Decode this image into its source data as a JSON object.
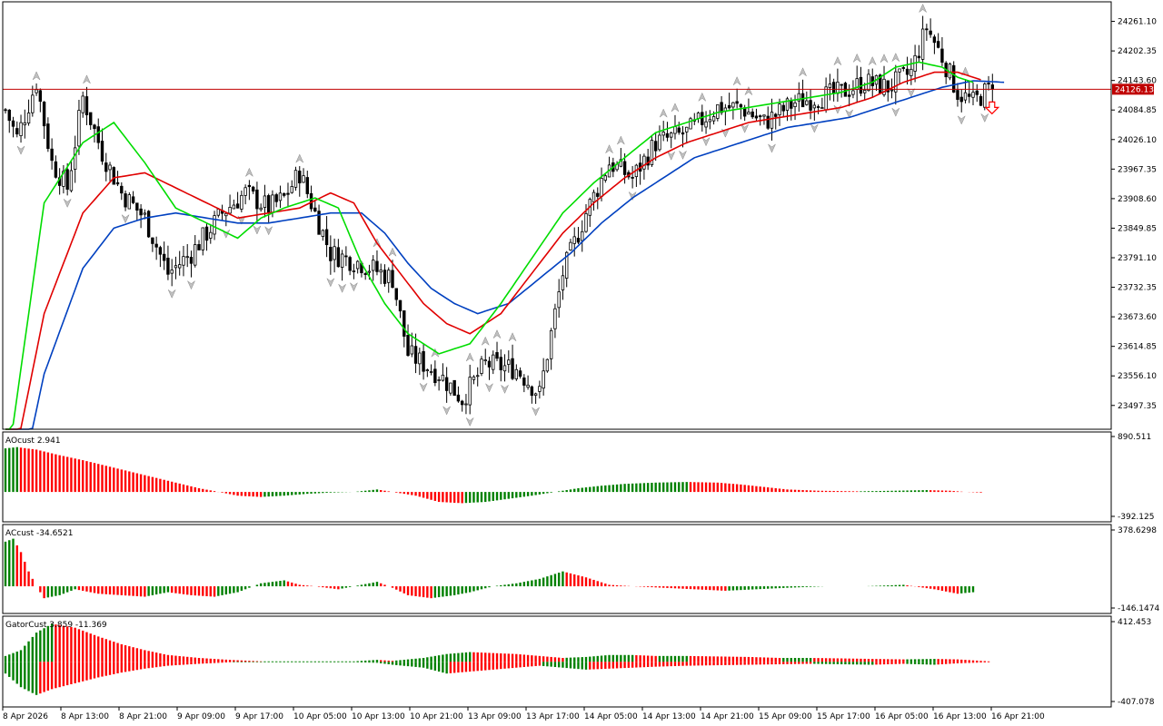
{
  "colors": {
    "background": "#ffffff",
    "frame": "#000000",
    "bull_body": "#ffffff",
    "bear_body": "#000000",
    "candle_wick": "#000000",
    "fractal_arrow": "#c0c0c0",
    "alligator_lips": "#00dd00",
    "alligator_teeth": "#e00000",
    "alligator_jaw": "#0040c0",
    "price_line": "#c00000",
    "price_tag_bg": "#c00000",
    "price_tag_text": "#ffffff",
    "hist_up": "#008000",
    "hist_down": "#ff0000",
    "sell_arrow": "#ff0000"
  },
  "chart_data": [
    {
      "type": "candlestick",
      "pane": "main",
      "price_axis": {
        "ticks": [
          "24261.10",
          "24202.35",
          "24143.60",
          "24084.85",
          "24026.10",
          "23967.35",
          "23908.60",
          "23849.85",
          "23791.10",
          "23732.35",
          "23673.60",
          "23614.85",
          "23556.10",
          "23497.35"
        ],
        "current_price": "24126.13",
        "ylim": [
          23450,
          24300
        ]
      },
      "time_axis": {
        "ticks": [
          "8 Apr 2026",
          "8 Apr 13:00",
          "8 Apr 21:00",
          "9 Apr 09:00",
          "9 Apr 17:00",
          "10 Apr 05:00",
          "10 Apr 13:00",
          "10 Apr 21:00",
          "13 Apr 09:00",
          "13 Apr 17:00",
          "14 Apr 05:00",
          "14 Apr 13:00",
          "14 Apr 21:00",
          "15 Apr 09:00",
          "15 Apr 17:00",
          "16 Apr 05:00",
          "16 Apr 13:00",
          "16 Apr 21:00"
        ]
      },
      "close_anchors": [
        [
          0,
          24085
        ],
        [
          3,
          24030
        ],
        [
          8,
          24140
        ],
        [
          12,
          23980
        ],
        [
          16,
          23930
        ],
        [
          20,
          24110
        ],
        [
          25,
          24000
        ],
        [
          30,
          23920
        ],
        [
          36,
          23870
        ],
        [
          42,
          23760
        ],
        [
          48,
          23800
        ],
        [
          56,
          23880
        ],
        [
          62,
          23920
        ],
        [
          68,
          23890
        ],
        [
          72,
          23910
        ],
        [
          76,
          23960
        ],
        [
          84,
          23800
        ],
        [
          92,
          23780
        ],
        [
          100,
          23750
        ],
        [
          104,
          23600
        ],
        [
          112,
          23560
        ],
        [
          118,
          23510
        ],
        [
          124,
          23580
        ],
        [
          132,
          23570
        ],
        [
          138,
          23520
        ],
        [
          144,
          23760
        ],
        [
          150,
          23880
        ],
        [
          156,
          23980
        ],
        [
          162,
          23950
        ],
        [
          168,
          24020
        ],
        [
          176,
          24040
        ],
        [
          184,
          24090
        ],
        [
          190,
          24090
        ],
        [
          196,
          24060
        ],
        [
          204,
          24100
        ],
        [
          210,
          24110
        ],
        [
          216,
          24120
        ],
        [
          222,
          24140
        ],
        [
          228,
          24130
        ],
        [
          234,
          24160
        ],
        [
          238,
          24250
        ],
        [
          242,
          24190
        ],
        [
          246,
          24120
        ],
        [
          250,
          24100
        ],
        [
          254,
          24126
        ]
      ],
      "lips_anchors": [
        [
          0,
          23350
        ],
        [
          10,
          23900
        ],
        [
          20,
          24020
        ],
        [
          28,
          24060
        ],
        [
          36,
          23980
        ],
        [
          44,
          23890
        ],
        [
          52,
          23860
        ],
        [
          60,
          23830
        ],
        [
          66,
          23870
        ],
        [
          72,
          23890
        ],
        [
          80,
          23910
        ],
        [
          86,
          23890
        ],
        [
          92,
          23780
        ],
        [
          98,
          23700
        ],
        [
          104,
          23640
        ],
        [
          112,
          23600
        ],
        [
          120,
          23620
        ],
        [
          128,
          23700
        ],
        [
          136,
          23790
        ],
        [
          144,
          23880
        ],
        [
          152,
          23940
        ],
        [
          160,
          23990
        ],
        [
          168,
          24040
        ],
        [
          176,
          24060
        ],
        [
          184,
          24080
        ],
        [
          192,
          24090
        ],
        [
          200,
          24100
        ],
        [
          208,
          24110
        ],
        [
          216,
          24120
        ],
        [
          224,
          24140
        ],
        [
          230,
          24170
        ],
        [
          236,
          24180
        ],
        [
          242,
          24170
        ],
        [
          246,
          24150
        ],
        [
          250,
          24140
        ]
      ],
      "teeth_anchors": [
        [
          0,
          23300
        ],
        [
          10,
          23680
        ],
        [
          20,
          23880
        ],
        [
          28,
          23950
        ],
        [
          36,
          23960
        ],
        [
          44,
          23930
        ],
        [
          52,
          23900
        ],
        [
          60,
          23870
        ],
        [
          68,
          23880
        ],
        [
          76,
          23890
        ],
        [
          84,
          23920
        ],
        [
          90,
          23900
        ],
        [
          96,
          23820
        ],
        [
          102,
          23760
        ],
        [
          108,
          23700
        ],
        [
          114,
          23660
        ],
        [
          120,
          23640
        ],
        [
          128,
          23680
        ],
        [
          136,
          23760
        ],
        [
          144,
          23840
        ],
        [
          152,
          23900
        ],
        [
          160,
          23950
        ],
        [
          168,
          23990
        ],
        [
          176,
          24020
        ],
        [
          184,
          24040
        ],
        [
          192,
          24060
        ],
        [
          200,
          24070
        ],
        [
          208,
          24080
        ],
        [
          216,
          24090
        ],
        [
          224,
          24110
        ],
        [
          232,
          24140
        ],
        [
          240,
          24160
        ],
        [
          246,
          24160
        ],
        [
          252,
          24145
        ]
      ],
      "jaw_anchors": [
        [
          0,
          23200
        ],
        [
          10,
          23560
        ],
        [
          20,
          23770
        ],
        [
          28,
          23850
        ],
        [
          36,
          23870
        ],
        [
          44,
          23880
        ],
        [
          52,
          23870
        ],
        [
          60,
          23860
        ],
        [
          68,
          23860
        ],
        [
          76,
          23870
        ],
        [
          84,
          23880
        ],
        [
          92,
          23880
        ],
        [
          98,
          23840
        ],
        [
          104,
          23780
        ],
        [
          110,
          23730
        ],
        [
          116,
          23700
        ],
        [
          122,
          23680
        ],
        [
          130,
          23700
        ],
        [
          138,
          23750
        ],
        [
          146,
          23800
        ],
        [
          154,
          23860
        ],
        [
          162,
          23910
        ],
        [
          170,
          23950
        ],
        [
          178,
          23990
        ],
        [
          186,
          24010
        ],
        [
          194,
          24030
        ],
        [
          202,
          24050
        ],
        [
          210,
          24060
        ],
        [
          218,
          24070
        ],
        [
          226,
          24090
        ],
        [
          234,
          24110
        ],
        [
          242,
          24130
        ],
        [
          250,
          24143
        ],
        [
          258,
          24140
        ]
      ]
    },
    {
      "type": "histogram",
      "pane": "indicator",
      "label": "AOcust 2.941",
      "axis_ticks": [
        "890.511",
        "-392.125"
      ],
      "ylim": [
        -392.125,
        890.511
      ],
      "anchors": [
        [
          0,
          700
        ],
        [
          3,
          720
        ],
        [
          8,
          680
        ],
        [
          14,
          590
        ],
        [
          20,
          510
        ],
        [
          26,
          420
        ],
        [
          32,
          330
        ],
        [
          38,
          240
        ],
        [
          44,
          150
        ],
        [
          50,
          60
        ],
        [
          56,
          -10
        ],
        [
          60,
          -60
        ],
        [
          66,
          -80
        ],
        [
          72,
          -60
        ],
        [
          78,
          -30
        ],
        [
          84,
          -10
        ],
        [
          90,
          0
        ],
        [
          96,
          40
        ],
        [
          100,
          0
        ],
        [
          106,
          -60
        ],
        [
          112,
          -160
        ],
        [
          118,
          -180
        ],
        [
          124,
          -160
        ],
        [
          130,
          -110
        ],
        [
          136,
          -60
        ],
        [
          142,
          0
        ],
        [
          148,
          60
        ],
        [
          154,
          100
        ],
        [
          160,
          130
        ],
        [
          168,
          150
        ],
        [
          176,
          160
        ],
        [
          184,
          150
        ],
        [
          190,
          120
        ],
        [
          196,
          80
        ],
        [
          202,
          40
        ],
        [
          210,
          20
        ],
        [
          220,
          10
        ],
        [
          230,
          20
        ],
        [
          238,
          30
        ],
        [
          244,
          20
        ],
        [
          248,
          0
        ],
        [
          252,
          -10
        ]
      ]
    },
    {
      "type": "histogram",
      "pane": "indicator",
      "label": "ACcust -34.6521",
      "axis_ticks": [
        "378.6298",
        "-146.1474"
      ],
      "ylim": [
        -146.1474,
        378.6298
      ],
      "anchors": [
        [
          0,
          300
        ],
        [
          2,
          320
        ],
        [
          4,
          230
        ],
        [
          6,
          100
        ],
        [
          8,
          0
        ],
        [
          10,
          -80
        ],
        [
          14,
          -60
        ],
        [
          18,
          -20
        ],
        [
          24,
          -50
        ],
        [
          30,
          -60
        ],
        [
          36,
          -70
        ],
        [
          42,
          -40
        ],
        [
          48,
          -60
        ],
        [
          54,
          -70
        ],
        [
          60,
          -40
        ],
        [
          66,
          20
        ],
        [
          72,
          40
        ],
        [
          76,
          10
        ],
        [
          80,
          0
        ],
        [
          86,
          -20
        ],
        [
          92,
          10
        ],
        [
          96,
          30
        ],
        [
          100,
          -10
        ],
        [
          104,
          -60
        ],
        [
          110,
          -80
        ],
        [
          116,
          -60
        ],
        [
          120,
          -40
        ],
        [
          126,
          0
        ],
        [
          132,
          20
        ],
        [
          138,
          50
        ],
        [
          144,
          100
        ],
        [
          150,
          60
        ],
        [
          156,
          10
        ],
        [
          162,
          0
        ],
        [
          170,
          -10
        ],
        [
          178,
          -20
        ],
        [
          186,
          -30
        ],
        [
          194,
          -20
        ],
        [
          202,
          -10
        ],
        [
          212,
          0
        ],
        [
          222,
          0
        ],
        [
          232,
          10
        ],
        [
          240,
          -20
        ],
        [
          246,
          -50
        ],
        [
          250,
          -40
        ]
      ]
    },
    {
      "type": "histogram",
      "pane": "indicator",
      "label": "GatorCust 3.859 -11.369",
      "axis_ticks": [
        "412.453",
        "-407.078"
      ],
      "ylim": [
        -407.078,
        412.453
      ],
      "upper_anchors": [
        [
          0,
          60
        ],
        [
          4,
          120
        ],
        [
          8,
          300
        ],
        [
          12,
          390
        ],
        [
          18,
          350
        ],
        [
          24,
          260
        ],
        [
          30,
          180
        ],
        [
          36,
          120
        ],
        [
          42,
          70
        ],
        [
          50,
          40
        ],
        [
          58,
          20
        ],
        [
          66,
          5
        ],
        [
          74,
          5
        ],
        [
          82,
          5
        ],
        [
          90,
          5
        ],
        [
          96,
          20
        ],
        [
          100,
          10
        ],
        [
          108,
          40
        ],
        [
          114,
          80
        ],
        [
          120,
          100
        ],
        [
          126,
          90
        ],
        [
          132,
          80
        ],
        [
          138,
          60
        ],
        [
          144,
          40
        ],
        [
          150,
          50
        ],
        [
          156,
          70
        ],
        [
          162,
          70
        ],
        [
          168,
          60
        ],
        [
          176,
          60
        ],
        [
          184,
          55
        ],
        [
          192,
          50
        ],
        [
          200,
          40
        ],
        [
          208,
          40
        ],
        [
          216,
          35
        ],
        [
          224,
          30
        ],
        [
          232,
          25
        ],
        [
          240,
          30
        ],
        [
          246,
          25
        ],
        [
          254,
          5
        ]
      ],
      "lower_anchors": [
        [
          0,
          -120
        ],
        [
          4,
          -260
        ],
        [
          8,
          -340
        ],
        [
          12,
          -280
        ],
        [
          18,
          -220
        ],
        [
          24,
          -160
        ],
        [
          30,
          -110
        ],
        [
          36,
          -70
        ],
        [
          42,
          -40
        ],
        [
          50,
          -20
        ],
        [
          58,
          -5
        ],
        [
          66,
          -5
        ],
        [
          74,
          -5
        ],
        [
          82,
          -5
        ],
        [
          90,
          -5
        ],
        [
          96,
          -10
        ],
        [
          100,
          -30
        ],
        [
          108,
          -60
        ],
        [
          114,
          -120
        ],
        [
          120,
          -100
        ],
        [
          126,
          -80
        ],
        [
          132,
          -60
        ],
        [
          138,
          -40
        ],
        [
          144,
          -60
        ],
        [
          150,
          -80
        ],
        [
          156,
          -70
        ],
        [
          162,
          -60
        ],
        [
          168,
          -50
        ],
        [
          176,
          -40
        ],
        [
          184,
          -35
        ],
        [
          192,
          -30
        ],
        [
          200,
          -25
        ],
        [
          208,
          -20
        ],
        [
          216,
          -25
        ],
        [
          224,
          -30
        ],
        [
          232,
          -20
        ],
        [
          240,
          -30
        ],
        [
          246,
          -15
        ],
        [
          254,
          -5
        ]
      ]
    }
  ],
  "panes": {
    "ao_label": "AOcust 2.941",
    "ac_label": "ACcust -34.6521",
    "gator_label": "GatorCust 3.859 -11.369"
  }
}
